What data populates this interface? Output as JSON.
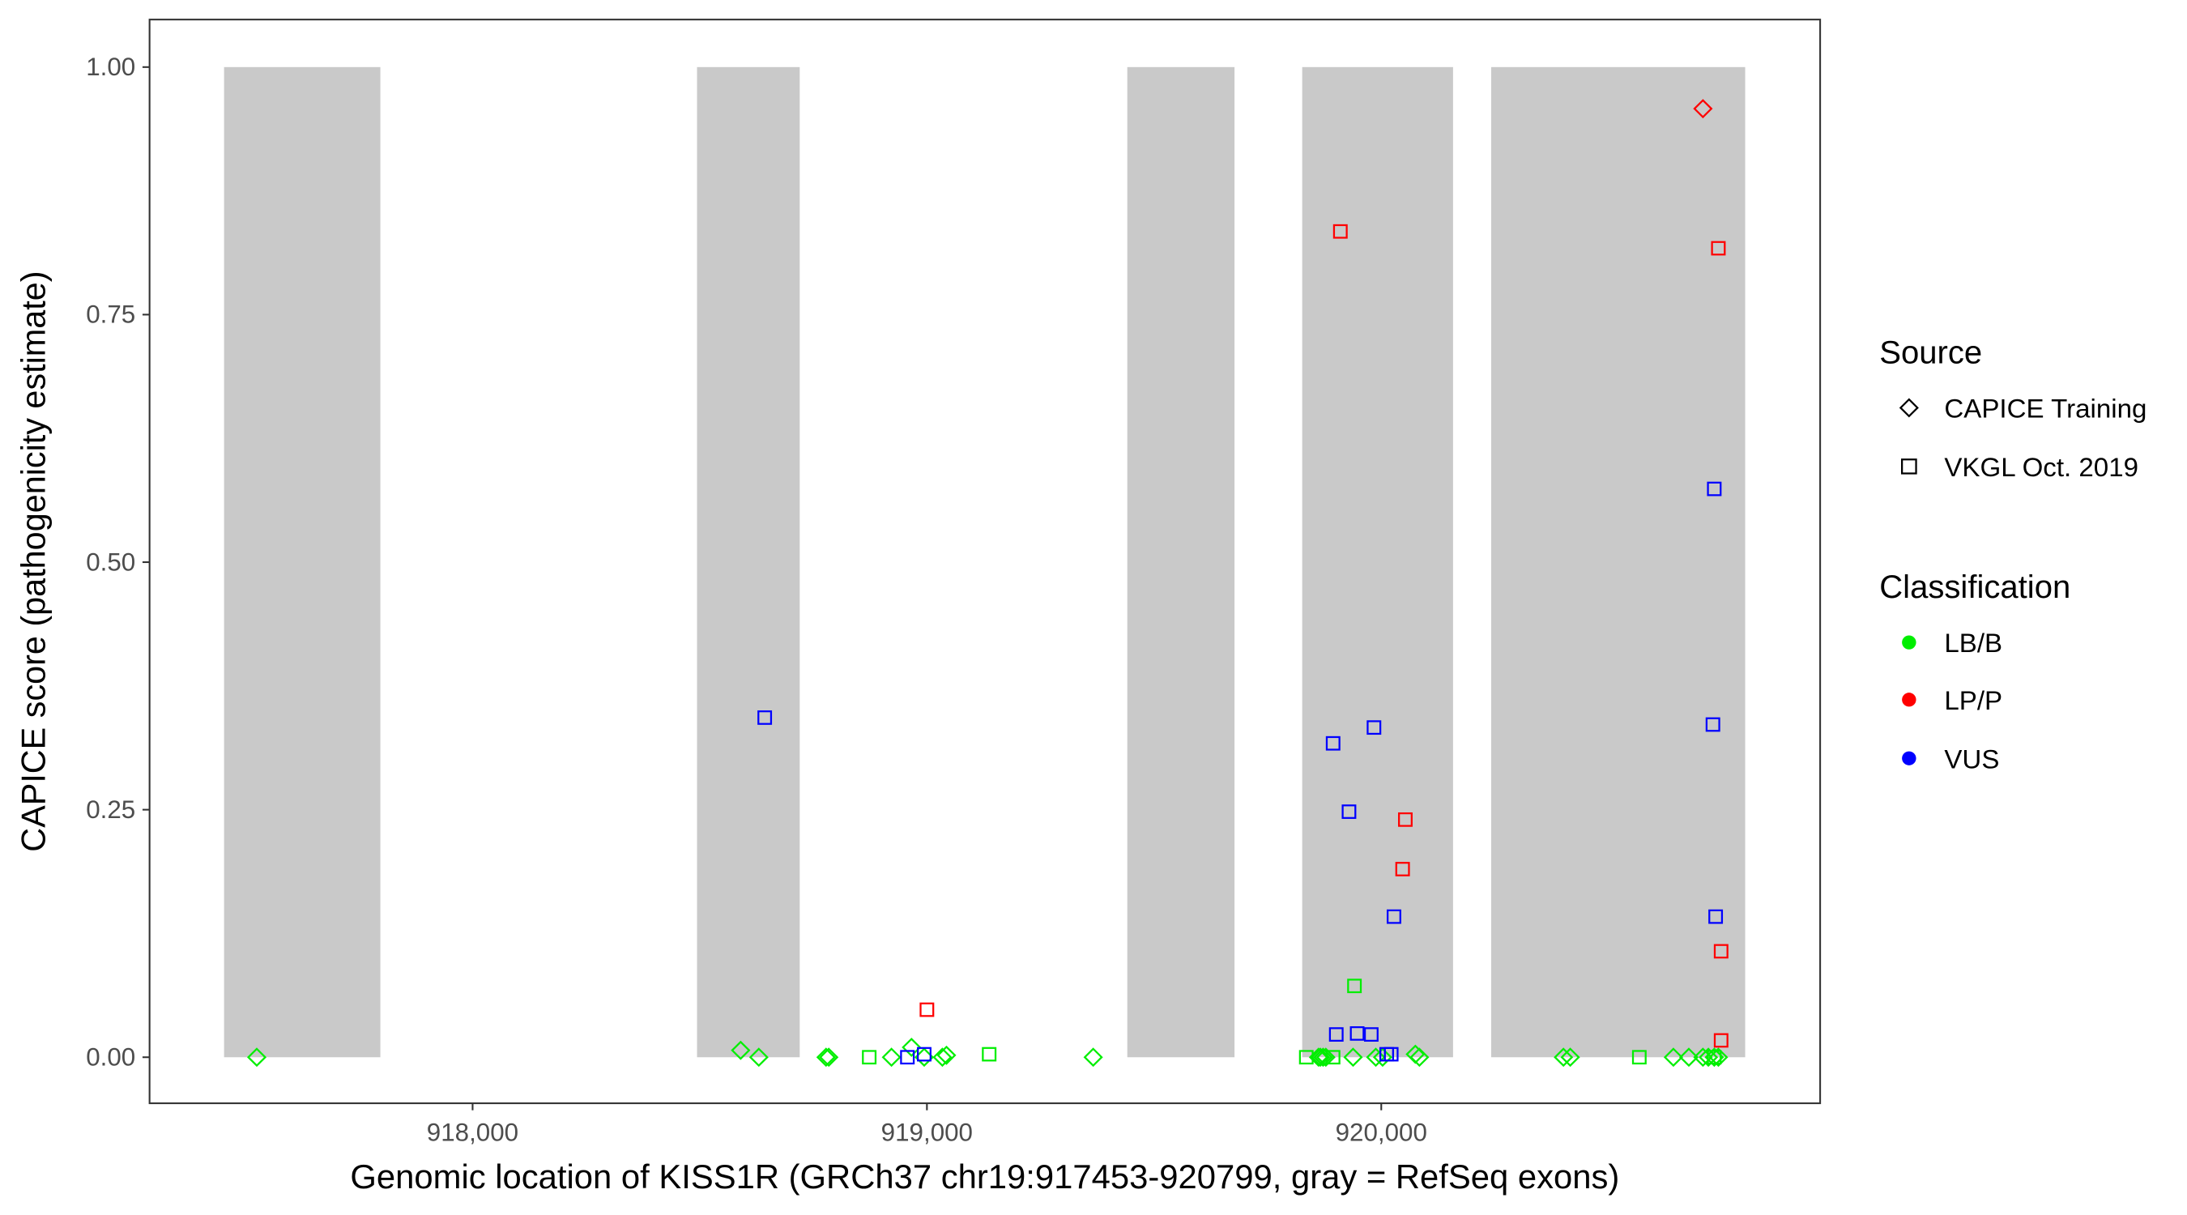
{
  "chart_data": {
    "type": "scatter",
    "xlabel": "Genomic location of KISS1R (GRCh37 chr19:917453-920799, gray = RefSeq exons)",
    "ylabel": "CAPICE score (pathogenicity estimate)",
    "xlim": [
      917289,
      920966
    ],
    "ylim": [
      -0.0465,
      1.048
    ],
    "x_ticks": [
      918000,
      919000,
      920000
    ],
    "x_tick_labels": [
      "918,000",
      "919,000",
      "920,000"
    ],
    "y_ticks": [
      0,
      0.25,
      0.5,
      0.75,
      1.0
    ],
    "y_tick_labels": [
      "0.00",
      "0.25",
      "0.50",
      "0.75",
      "1.00"
    ],
    "grid": false,
    "exons": [
      [
        917453,
        917797
      ],
      [
        918494,
        918720
      ],
      [
        919441,
        919677
      ],
      [
        919826,
        920158
      ],
      [
        920242,
        920801
      ]
    ],
    "legend": {
      "placement": "right",
      "source_title": "Source",
      "source_items": [
        {
          "label": "CAPICE Training",
          "shape": "diamond"
        },
        {
          "label": "VKGL Oct. 2019",
          "shape": "square"
        }
      ],
      "class_title": "Classification",
      "class_items": [
        {
          "label": "LB/B",
          "color": "#00ee00"
        },
        {
          "label": "LP/P",
          "color": "#ff0000"
        },
        {
          "label": "VUS",
          "color": "#0000ff"
        }
      ]
    },
    "colors": {
      "LB/B": "#00ee00",
      "LP/P": "#ff0000",
      "VUS": "#0000ff",
      "exon": "#c9c9c9"
    },
    "points": [
      {
        "x": 917525,
        "y": 0,
        "s": "diamond",
        "c": "LB/B"
      },
      {
        "x": 918590,
        "y": 0.007,
        "s": "diamond",
        "c": "LB/B"
      },
      {
        "x": 918630,
        "y": 0,
        "s": "diamond",
        "c": "LB/B"
      },
      {
        "x": 918778,
        "y": 0,
        "s": "diamond",
        "c": "LB/B"
      },
      {
        "x": 918784,
        "y": 0,
        "s": "diamond",
        "c": "LB/B"
      },
      {
        "x": 918922,
        "y": 0,
        "s": "diamond",
        "c": "LB/B"
      },
      {
        "x": 918966,
        "y": 0.01,
        "s": "diamond",
        "c": "LB/B"
      },
      {
        "x": 918994,
        "y": 0,
        "s": "diamond",
        "c": "LB/B"
      },
      {
        "x": 919034,
        "y": 0,
        "s": "diamond",
        "c": "LB/B"
      },
      {
        "x": 919043,
        "y": 0.002,
        "s": "diamond",
        "c": "LB/B"
      },
      {
        "x": 919366,
        "y": 0,
        "s": "diamond",
        "c": "LB/B"
      },
      {
        "x": 919862,
        "y": 0,
        "s": "diamond",
        "c": "LB/B"
      },
      {
        "x": 919866,
        "y": 0,
        "s": "diamond",
        "c": "LB/B"
      },
      {
        "x": 919872,
        "y": 0,
        "s": "diamond",
        "c": "LB/B"
      },
      {
        "x": 919878,
        "y": 0,
        "s": "diamond",
        "c": "LB/B"
      },
      {
        "x": 919938,
        "y": 0,
        "s": "diamond",
        "c": "LB/B"
      },
      {
        "x": 919988,
        "y": 0,
        "s": "diamond",
        "c": "LB/B"
      },
      {
        "x": 920003,
        "y": 0,
        "s": "diamond",
        "c": "LB/B"
      },
      {
        "x": 920075,
        "y": 0.003,
        "s": "diamond",
        "c": "LB/B"
      },
      {
        "x": 920084,
        "y": 0,
        "s": "diamond",
        "c": "LB/B"
      },
      {
        "x": 920401,
        "y": 0,
        "s": "diamond",
        "c": "LB/B"
      },
      {
        "x": 920416,
        "y": 0,
        "s": "diamond",
        "c": "LB/B"
      },
      {
        "x": 920643,
        "y": 0,
        "s": "diamond",
        "c": "LB/B"
      },
      {
        "x": 920677,
        "y": 0,
        "s": "diamond",
        "c": "LB/B"
      },
      {
        "x": 920708,
        "y": 0,
        "s": "diamond",
        "c": "LB/B"
      },
      {
        "x": 920720,
        "y": 0,
        "s": "diamond",
        "c": "LB/B"
      },
      {
        "x": 920733,
        "y": 0,
        "s": "diamond",
        "c": "LB/B"
      },
      {
        "x": 920742,
        "y": 0,
        "s": "diamond",
        "c": "LB/B"
      },
      {
        "x": 920708,
        "y": 0.958,
        "s": "diamond",
        "c": "LP/P"
      },
      {
        "x": 918873,
        "y": 0,
        "s": "square",
        "c": "LB/B"
      },
      {
        "x": 919137,
        "y": 0.003,
        "s": "square",
        "c": "LB/B"
      },
      {
        "x": 919835,
        "y": 0,
        "s": "square",
        "c": "LB/B"
      },
      {
        "x": 919894,
        "y": 0,
        "s": "square",
        "c": "LB/B"
      },
      {
        "x": 919941,
        "y": 0.072,
        "s": "square",
        "c": "LB/B"
      },
      {
        "x": 920568,
        "y": 0,
        "s": "square",
        "c": "LB/B"
      },
      {
        "x": 920733,
        "y": 0,
        "s": "square",
        "c": "LB/B"
      },
      {
        "x": 918643,
        "y": 0.343,
        "s": "square",
        "c": "VUS"
      },
      {
        "x": 918957,
        "y": 0,
        "s": "square",
        "c": "VUS"
      },
      {
        "x": 918994,
        "y": 0.003,
        "s": "square",
        "c": "VUS"
      },
      {
        "x": 919894,
        "y": 0.317,
        "s": "square",
        "c": "VUS"
      },
      {
        "x": 919929,
        "y": 0.248,
        "s": "square",
        "c": "VUS"
      },
      {
        "x": 919984,
        "y": 0.333,
        "s": "square",
        "c": "VUS"
      },
      {
        "x": 919901,
        "y": 0.023,
        "s": "square",
        "c": "VUS"
      },
      {
        "x": 919947,
        "y": 0.024,
        "s": "square",
        "c": "VUS"
      },
      {
        "x": 919978,
        "y": 0.023,
        "s": "square",
        "c": "VUS"
      },
      {
        "x": 920012,
        "y": 0.003,
        "s": "square",
        "c": "VUS"
      },
      {
        "x": 920022,
        "y": 0.003,
        "s": "square",
        "c": "VUS"
      },
      {
        "x": 920028,
        "y": 0.142,
        "s": "square",
        "c": "VUS"
      },
      {
        "x": 920733,
        "y": 0.574,
        "s": "square",
        "c": "VUS"
      },
      {
        "x": 920730,
        "y": 0.336,
        "s": "square",
        "c": "VUS"
      },
      {
        "x": 920736,
        "y": 0.142,
        "s": "square",
        "c": "VUS"
      },
      {
        "x": 919910,
        "y": 0.834,
        "s": "square",
        "c": "LP/P"
      },
      {
        "x": 919000,
        "y": 0.048,
        "s": "square",
        "c": "LP/P"
      },
      {
        "x": 920053,
        "y": 0.24,
        "s": "square",
        "c": "LP/P"
      },
      {
        "x": 920047,
        "y": 0.19,
        "s": "square",
        "c": "LP/P"
      },
      {
        "x": 920742,
        "y": 0.817,
        "s": "square",
        "c": "LP/P"
      },
      {
        "x": 920748,
        "y": 0.107,
        "s": "square",
        "c": "LP/P"
      },
      {
        "x": 920748,
        "y": 0.017,
        "s": "square",
        "c": "LP/P"
      }
    ]
  }
}
